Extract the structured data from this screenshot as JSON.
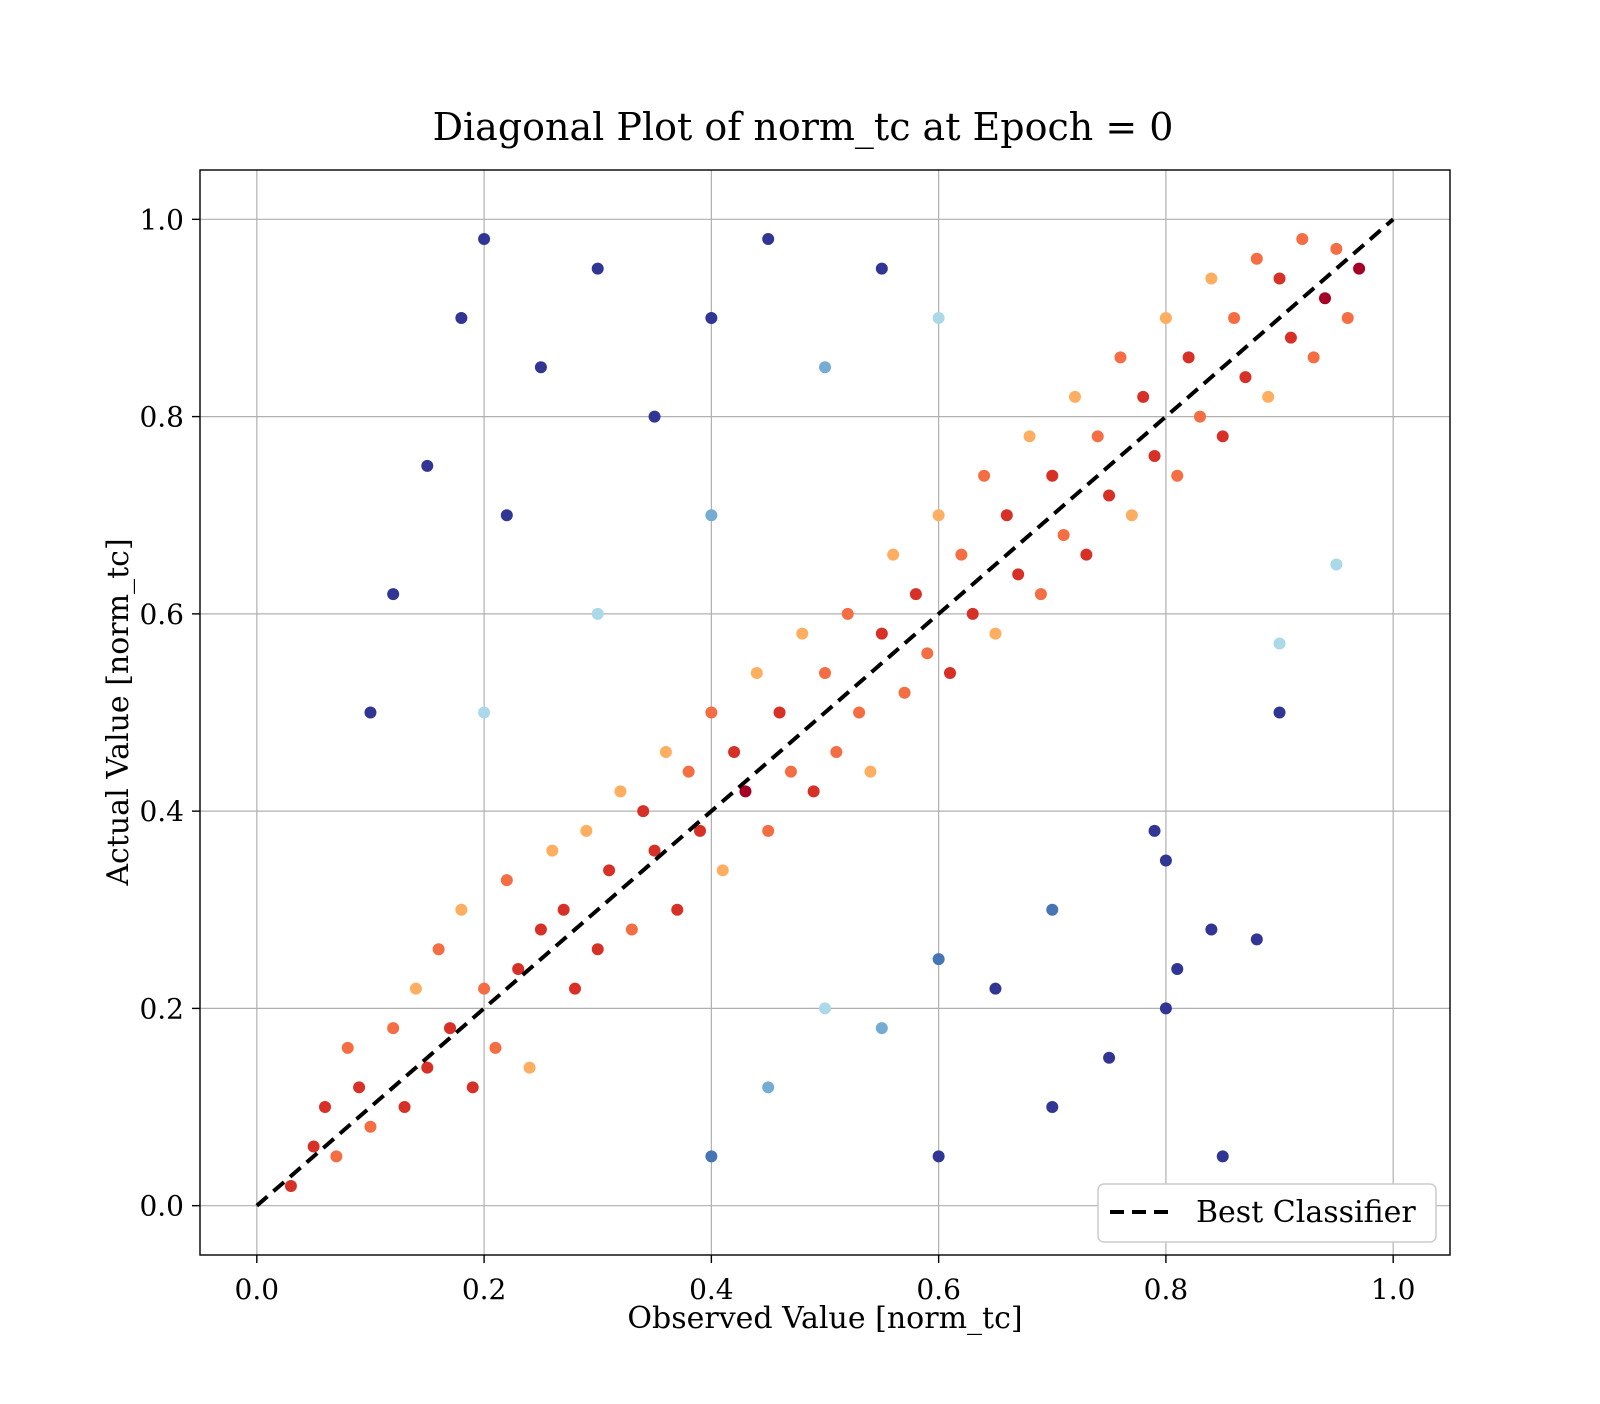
{
  "chart_data": {
    "type": "scatter",
    "title": "Diagonal Plot of norm_tc at Epoch = 0",
    "xlabel": "Observed Value [norm_tc]",
    "ylabel": "Actual Value [norm_tc]",
    "xlim": [
      -0.05,
      1.05
    ],
    "ylim": [
      -0.05,
      1.05
    ],
    "xticks": [
      "0.0",
      "0.2",
      "0.4",
      "0.6",
      "0.8",
      "1.0"
    ],
    "yticks": [
      "0.0",
      "0.2",
      "0.4",
      "0.6",
      "0.8",
      "1.0"
    ],
    "grid": true,
    "legend": {
      "placement": "lower-right",
      "entries": [
        "Best Classifier"
      ]
    },
    "reference_line": {
      "name": "Best Classifier",
      "style": "dashed",
      "color": "#000000",
      "x": [
        0,
        1
      ],
      "y": [
        0,
        1
      ]
    },
    "colormap": [
      "#313695",
      "#4575b4",
      "#74add1",
      "#abd9e9",
      "#e0f3f8",
      "#ffffbf",
      "#fee090",
      "#fdae61",
      "#f46d43",
      "#d73027",
      "#a50026"
    ],
    "points": [
      [
        0.03,
        0.02
      ],
      [
        0.05,
        0.06
      ],
      [
        0.06,
        0.1
      ],
      [
        0.07,
        0.05
      ],
      [
        0.08,
        0.16
      ],
      [
        0.09,
        0.12
      ],
      [
        0.1,
        0.08
      ],
      [
        0.12,
        0.18
      ],
      [
        0.13,
        0.1
      ],
      [
        0.14,
        0.22
      ],
      [
        0.15,
        0.14
      ],
      [
        0.16,
        0.26
      ],
      [
        0.17,
        0.18
      ],
      [
        0.18,
        0.3
      ],
      [
        0.19,
        0.12
      ],
      [
        0.2,
        0.22
      ],
      [
        0.21,
        0.16
      ],
      [
        0.22,
        0.33
      ],
      [
        0.23,
        0.24
      ],
      [
        0.24,
        0.14
      ],
      [
        0.25,
        0.28
      ],
      [
        0.26,
        0.36
      ],
      [
        0.27,
        0.3
      ],
      [
        0.28,
        0.22
      ],
      [
        0.29,
        0.38
      ],
      [
        0.3,
        0.26
      ],
      [
        0.31,
        0.34
      ],
      [
        0.32,
        0.42
      ],
      [
        0.33,
        0.28
      ],
      [
        0.34,
        0.4
      ],
      [
        0.35,
        0.36
      ],
      [
        0.36,
        0.46
      ],
      [
        0.37,
        0.3
      ],
      [
        0.38,
        0.44
      ],
      [
        0.39,
        0.38
      ],
      [
        0.4,
        0.5
      ],
      [
        0.41,
        0.34
      ],
      [
        0.42,
        0.46
      ],
      [
        0.43,
        0.42
      ],
      [
        0.44,
        0.54
      ],
      [
        0.45,
        0.38
      ],
      [
        0.46,
        0.5
      ],
      [
        0.47,
        0.44
      ],
      [
        0.48,
        0.58
      ],
      [
        0.49,
        0.42
      ],
      [
        0.5,
        0.54
      ],
      [
        0.51,
        0.46
      ],
      [
        0.52,
        0.6
      ],
      [
        0.53,
        0.5
      ],
      [
        0.54,
        0.44
      ],
      [
        0.55,
        0.58
      ],
      [
        0.56,
        0.66
      ],
      [
        0.57,
        0.52
      ],
      [
        0.58,
        0.62
      ],
      [
        0.59,
        0.56
      ],
      [
        0.6,
        0.7
      ],
      [
        0.61,
        0.54
      ],
      [
        0.62,
        0.66
      ],
      [
        0.63,
        0.6
      ],
      [
        0.64,
        0.74
      ],
      [
        0.65,
        0.58
      ],
      [
        0.66,
        0.7
      ],
      [
        0.67,
        0.64
      ],
      [
        0.68,
        0.78
      ],
      [
        0.69,
        0.62
      ],
      [
        0.7,
        0.74
      ],
      [
        0.71,
        0.68
      ],
      [
        0.72,
        0.82
      ],
      [
        0.73,
        0.66
      ],
      [
        0.74,
        0.78
      ],
      [
        0.75,
        0.72
      ],
      [
        0.76,
        0.86
      ],
      [
        0.77,
        0.7
      ],
      [
        0.78,
        0.82
      ],
      [
        0.79,
        0.76
      ],
      [
        0.8,
        0.9
      ],
      [
        0.81,
        0.74
      ],
      [
        0.82,
        0.86
      ],
      [
        0.83,
        0.8
      ],
      [
        0.84,
        0.94
      ],
      [
        0.85,
        0.78
      ],
      [
        0.86,
        0.9
      ],
      [
        0.87,
        0.84
      ],
      [
        0.88,
        0.96
      ],
      [
        0.89,
        0.82
      ],
      [
        0.9,
        0.94
      ],
      [
        0.91,
        0.88
      ],
      [
        0.92,
        0.98
      ],
      [
        0.93,
        0.86
      ],
      [
        0.94,
        0.92
      ],
      [
        0.95,
        0.97
      ],
      [
        0.96,
        0.9
      ],
      [
        0.97,
        0.95
      ],
      [
        0.1,
        0.5
      ],
      [
        0.12,
        0.62
      ],
      [
        0.15,
        0.75
      ],
      [
        0.18,
        0.9
      ],
      [
        0.2,
        0.98
      ],
      [
        0.22,
        0.7
      ],
      [
        0.25,
        0.85
      ],
      [
        0.3,
        0.95
      ],
      [
        0.35,
        0.8
      ],
      [
        0.4,
        0.9
      ],
      [
        0.45,
        0.98
      ],
      [
        0.5,
        0.85
      ],
      [
        0.55,
        0.95
      ],
      [
        0.3,
        0.6
      ],
      [
        0.2,
        0.5
      ],
      [
        0.4,
        0.7
      ],
      [
        0.6,
        0.9
      ],
      [
        0.5,
        0.2
      ],
      [
        0.6,
        0.25
      ],
      [
        0.7,
        0.3
      ],
      [
        0.8,
        0.35
      ],
      [
        0.9,
        0.5
      ],
      [
        0.6,
        0.05
      ],
      [
        0.7,
        0.1
      ],
      [
        0.8,
        0.2
      ],
      [
        0.85,
        0.05
      ],
      [
        0.75,
        0.15
      ],
      [
        0.4,
        0.05
      ],
      [
        0.45,
        0.12
      ],
      [
        0.55,
        0.18
      ],
      [
        0.65,
        0.22
      ],
      [
        0.95,
        0.65
      ],
      [
        0.9,
        0.57
      ],
      [
        0.84,
        0.28
      ],
      [
        0.81,
        0.24
      ],
      [
        0.88,
        0.27
      ],
      [
        0.79,
        0.38
      ]
    ]
  }
}
